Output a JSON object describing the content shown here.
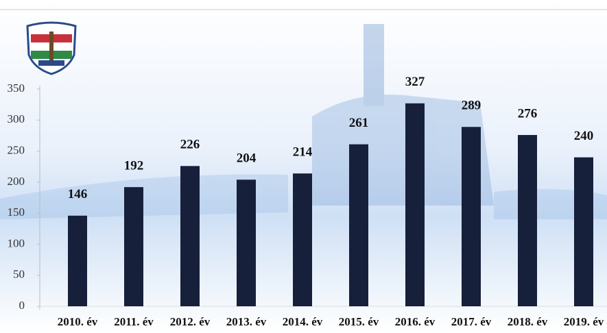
{
  "chart_data": {
    "type": "bar",
    "categories": [
      "2010. év",
      "2011. év",
      "2012. év",
      "2013. év",
      "2014. év",
      "2015. év",
      "2016. év",
      "2017. év",
      "2018. év",
      "2019. év"
    ],
    "values": [
      146,
      192,
      226,
      204,
      214,
      261,
      327,
      289,
      276,
      240
    ],
    "color": "#17203a",
    "ylim": [
      0,
      350
    ],
    "yticks": [
      0,
      50,
      100,
      150,
      200,
      250,
      300,
      350
    ]
  }
}
